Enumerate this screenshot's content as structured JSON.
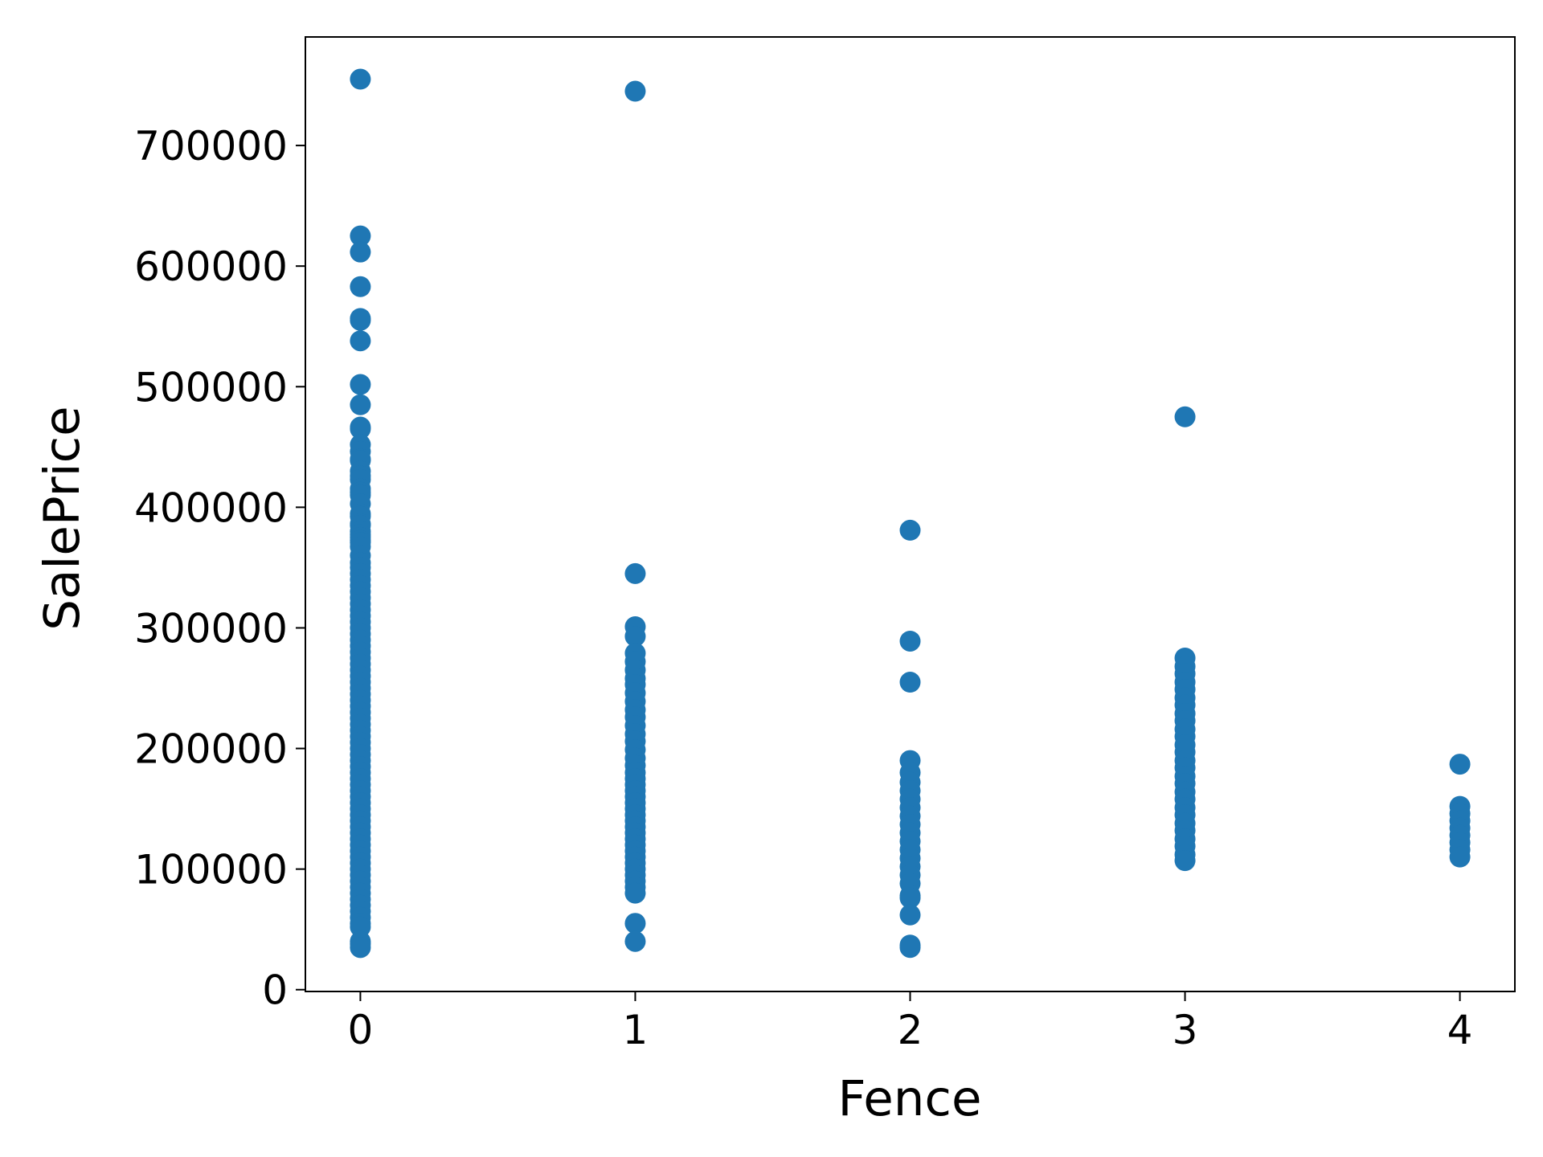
{
  "chart_data": {
    "type": "scatter",
    "title": "",
    "xlabel": "Fence",
    "ylabel": "SalePrice",
    "xlim": [
      -0.2,
      4.2
    ],
    "ylim": [
      -1500,
      790000
    ],
    "xticks": [
      0,
      1,
      2,
      3,
      4
    ],
    "xtick_labels": [
      "0",
      "1",
      "2",
      "3",
      "4"
    ],
    "yticks": [
      0,
      100000,
      200000,
      300000,
      400000,
      500000,
      600000,
      700000
    ],
    "ytick_labels": [
      "0",
      "100000",
      "200000",
      "300000",
      "400000",
      "500000",
      "600000",
      "700000"
    ],
    "grid": false,
    "color": "#1f77b4",
    "series": [
      {
        "points": [
          [
            0,
            755000
          ],
          [
            0,
            625000
          ],
          [
            0,
            611657
          ],
          [
            0,
            582933
          ],
          [
            0,
            556581
          ],
          [
            0,
            555000
          ],
          [
            0,
            538000
          ],
          [
            0,
            501837
          ],
          [
            0,
            485000
          ],
          [
            0,
            466500
          ],
          [
            0,
            465000
          ],
          [
            0,
            451950
          ],
          [
            0,
            446261
          ],
          [
            0,
            440000
          ],
          [
            0,
            438780
          ],
          [
            0,
            430000
          ],
          [
            0,
            426000
          ],
          [
            0,
            423000
          ],
          [
            0,
            415298
          ],
          [
            0,
            412500
          ],
          [
            0,
            410000
          ],
          [
            0,
            402861
          ],
          [
            0,
            394617
          ],
          [
            0,
            392500
          ],
          [
            0,
            386250
          ],
          [
            0,
            385000
          ],
          [
            0,
            380000
          ],
          [
            0,
            377426
          ],
          [
            0,
            375000
          ],
          [
            0,
            372402
          ],
          [
            0,
            370878
          ],
          [
            0,
            367294
          ],
          [
            0,
            360000
          ],
          [
            0,
            354000
          ],
          [
            0,
            350000
          ],
          [
            0,
            345000
          ],
          [
            0,
            340000
          ],
          [
            0,
            335000
          ],
          [
            0,
            330000
          ],
          [
            0,
            325000
          ],
          [
            0,
            320000
          ],
          [
            0,
            315000
          ],
          [
            0,
            310000
          ],
          [
            0,
            305000
          ],
          [
            0,
            300000
          ],
          [
            0,
            295000
          ],
          [
            0,
            290000
          ],
          [
            0,
            285000
          ],
          [
            0,
            280000
          ],
          [
            0,
            275000
          ],
          [
            0,
            270000
          ],
          [
            0,
            265000
          ],
          [
            0,
            260000
          ],
          [
            0,
            255000
          ],
          [
            0,
            250000
          ],
          [
            0,
            245000
          ],
          [
            0,
            240000
          ],
          [
            0,
            235000
          ],
          [
            0,
            230000
          ],
          [
            0,
            225000
          ],
          [
            0,
            220000
          ],
          [
            0,
            215000
          ],
          [
            0,
            210000
          ],
          [
            0,
            205000
          ],
          [
            0,
            200000
          ],
          [
            0,
            195000
          ],
          [
            0,
            190000
          ],
          [
            0,
            185000
          ],
          [
            0,
            180000
          ],
          [
            0,
            175000
          ],
          [
            0,
            170000
          ],
          [
            0,
            165000
          ],
          [
            0,
            160000
          ],
          [
            0,
            155000
          ],
          [
            0,
            150000
          ],
          [
            0,
            145000
          ],
          [
            0,
            140000
          ],
          [
            0,
            135000
          ],
          [
            0,
            130000
          ],
          [
            0,
            125000
          ],
          [
            0,
            120000
          ],
          [
            0,
            115000
          ],
          [
            0,
            110000
          ],
          [
            0,
            105000
          ],
          [
            0,
            100000
          ],
          [
            0,
            95000
          ],
          [
            0,
            90000
          ],
          [
            0,
            85000
          ],
          [
            0,
            80000
          ],
          [
            0,
            75000
          ],
          [
            0,
            70000
          ],
          [
            0,
            65000
          ],
          [
            0,
            60000
          ],
          [
            0,
            55000
          ],
          [
            0,
            52000
          ],
          [
            0,
            40000
          ],
          [
            0,
            37900
          ],
          [
            0,
            34900
          ],
          [
            1,
            745000
          ],
          [
            1,
            345000
          ],
          [
            1,
            301000
          ],
          [
            1,
            293000
          ],
          [
            1,
            279000
          ],
          [
            1,
            272000
          ],
          [
            1,
            265000
          ],
          [
            1,
            258000
          ],
          [
            1,
            253000
          ],
          [
            1,
            246000
          ],
          [
            1,
            239000
          ],
          [
            1,
            232000
          ],
          [
            1,
            226000
          ],
          [
            1,
            219000
          ],
          [
            1,
            212000
          ],
          [
            1,
            206000
          ],
          [
            1,
            199000
          ],
          [
            1,
            192000
          ],
          [
            1,
            186000
          ],
          [
            1,
            180000
          ],
          [
            1,
            175000
          ],
          [
            1,
            170000
          ],
          [
            1,
            165000
          ],
          [
            1,
            160000
          ],
          [
            1,
            155000
          ],
          [
            1,
            150000
          ],
          [
            1,
            145000
          ],
          [
            1,
            140000
          ],
          [
            1,
            135000
          ],
          [
            1,
            130000
          ],
          [
            1,
            125000
          ],
          [
            1,
            120000
          ],
          [
            1,
            115000
          ],
          [
            1,
            110000
          ],
          [
            1,
            105000
          ],
          [
            1,
            100000
          ],
          [
            1,
            95000
          ],
          [
            1,
            90000
          ],
          [
            1,
            85000
          ],
          [
            1,
            80000
          ],
          [
            1,
            55000
          ],
          [
            1,
            40000
          ],
          [
            2,
            381000
          ],
          [
            2,
            289000
          ],
          [
            2,
            255000
          ],
          [
            2,
            190000
          ],
          [
            2,
            180000
          ],
          [
            2,
            172000
          ],
          [
            2,
            165000
          ],
          [
            2,
            158000
          ],
          [
            2,
            151000
          ],
          [
            2,
            144000
          ],
          [
            2,
            137000
          ],
          [
            2,
            130000
          ],
          [
            2,
            123000
          ],
          [
            2,
            116000
          ],
          [
            2,
            109000
          ],
          [
            2,
            102000
          ],
          [
            2,
            95000
          ],
          [
            2,
            88000
          ],
          [
            2,
            78000
          ],
          [
            2,
            76000
          ],
          [
            2,
            62000
          ],
          [
            2,
            37000
          ],
          [
            2,
            35000
          ],
          [
            3,
            475000
          ],
          [
            3,
            275000
          ],
          [
            3,
            268000
          ],
          [
            3,
            262000
          ],
          [
            3,
            255000
          ],
          [
            3,
            249000
          ],
          [
            3,
            242000
          ],
          [
            3,
            236000
          ],
          [
            3,
            229000
          ],
          [
            3,
            223000
          ],
          [
            3,
            216000
          ],
          [
            3,
            210000
          ],
          [
            3,
            203000
          ],
          [
            3,
            197000
          ],
          [
            3,
            190000
          ],
          [
            3,
            184000
          ],
          [
            3,
            177000
          ],
          [
            3,
            171000
          ],
          [
            3,
            164000
          ],
          [
            3,
            158000
          ],
          [
            3,
            151000
          ],
          [
            3,
            145000
          ],
          [
            3,
            138000
          ],
          [
            3,
            132000
          ],
          [
            3,
            125000
          ],
          [
            3,
            119000
          ],
          [
            3,
            112000
          ],
          [
            3,
            107000
          ],
          [
            4,
            187000
          ],
          [
            4,
            152000
          ],
          [
            4,
            146000
          ],
          [
            4,
            140000
          ],
          [
            4,
            134000
          ],
          [
            4,
            128000
          ],
          [
            4,
            122000
          ],
          [
            4,
            116000
          ],
          [
            4,
            110000
          ]
        ]
      }
    ]
  }
}
